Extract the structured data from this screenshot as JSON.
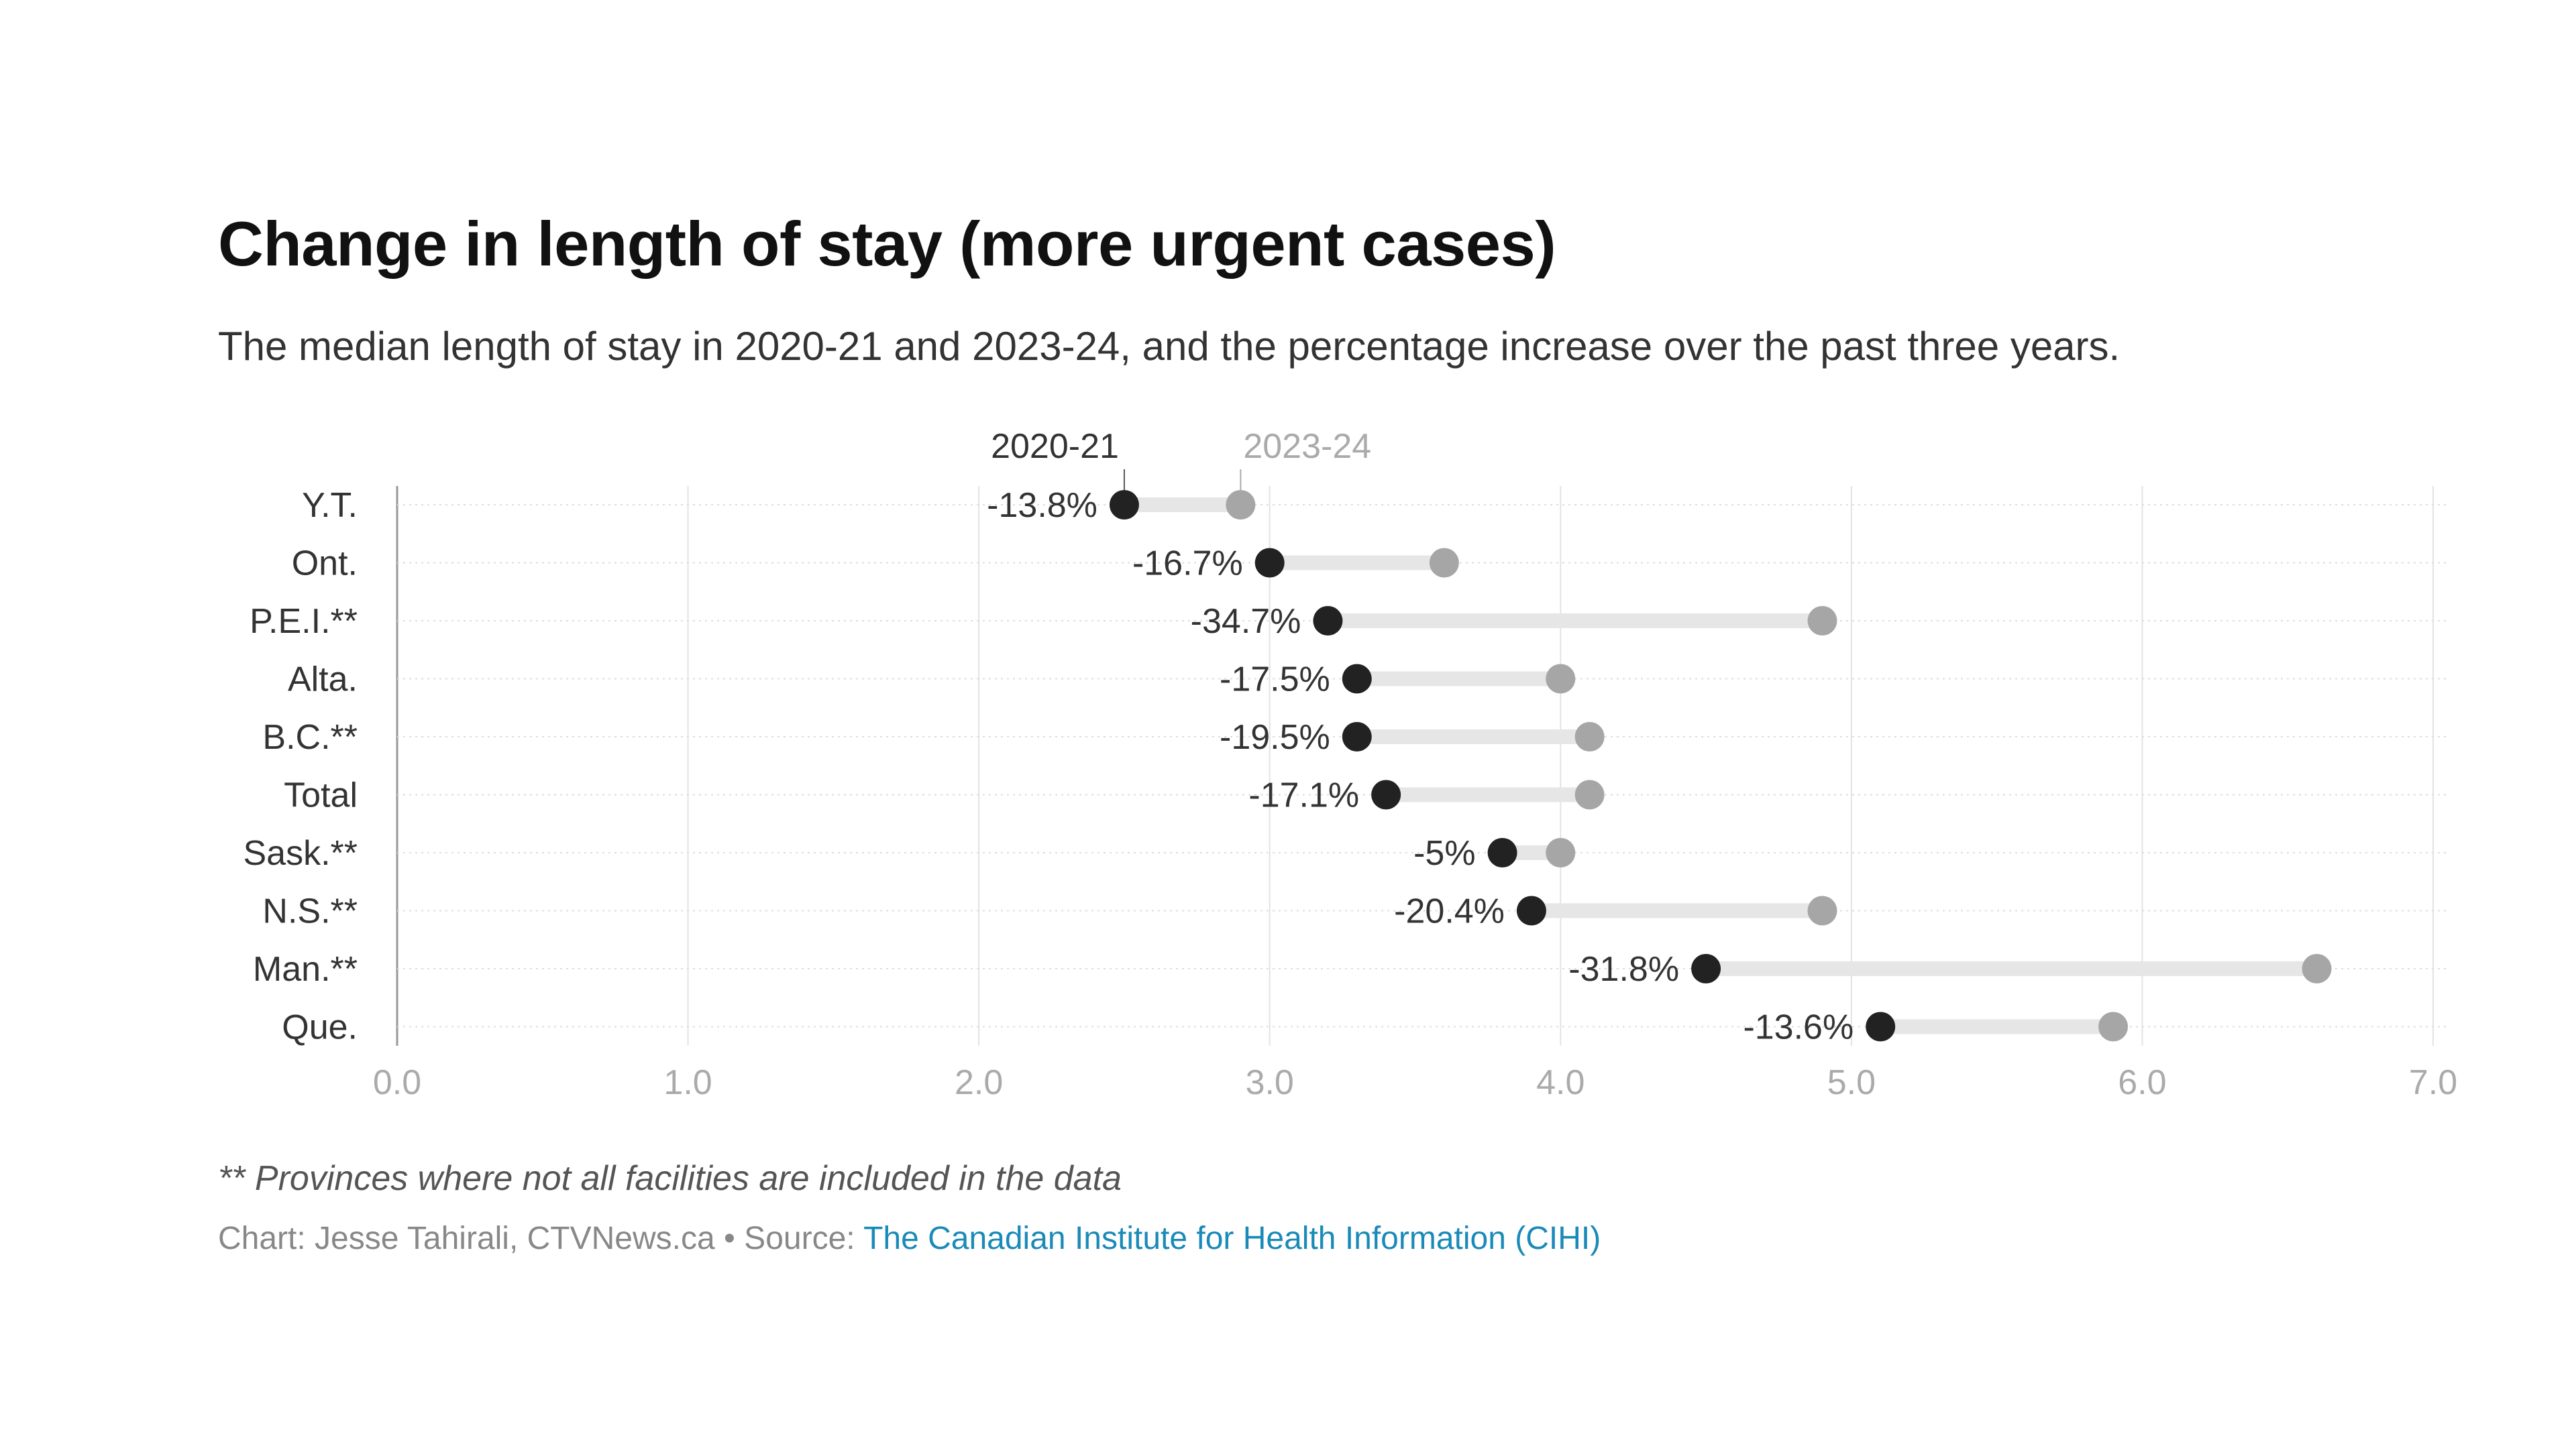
{
  "chart_data": {
    "type": "dumbbell",
    "title": "Change in length of stay (more urgent cases)",
    "subtitle": "The median length of stay in 2020-21 and 2023-24, and the percentage increase over the past three years.",
    "series": [
      {
        "name": "2020-21",
        "color": "#222222"
      },
      {
        "name": "2023-24",
        "color": "#a6a6a6"
      }
    ],
    "categories": [
      "Y.T.",
      "Ont.",
      "P.E.I.**",
      "Alta.",
      "B.C.**",
      "Total",
      "Sask.**",
      "N.S.**",
      "Man.**",
      "Que."
    ],
    "values_2020_21": [
      2.5,
      3.0,
      3.2,
      3.3,
      3.3,
      3.4,
      3.8,
      3.9,
      4.5,
      5.1
    ],
    "values_2023_24": [
      2.9,
      3.6,
      4.9,
      4.0,
      4.1,
      4.1,
      4.0,
      4.9,
      6.6,
      5.9
    ],
    "labels": [
      "-13.8%",
      "-16.7%",
      "-34.7%",
      "-17.5%",
      "-19.5%",
      "-17.1%",
      "-5%",
      "-20.4%",
      "-31.8%",
      "-13.6%"
    ],
    "xlim": [
      0,
      7
    ],
    "xticks": [
      "0.0",
      "1.0",
      "2.0",
      "3.0",
      "4.0",
      "5.0",
      "6.0",
      "7.0"
    ],
    "grid": true,
    "legend_placement": "top, labels above first row"
  },
  "footer": {
    "note": "** Provinces where not all facilities are included in the data",
    "credit_prefix": "Chart: Jesse Tahirali, CTVNews.ca • Source: ",
    "source_link": "The Canadian Institute for Health Information (CIHI)"
  }
}
